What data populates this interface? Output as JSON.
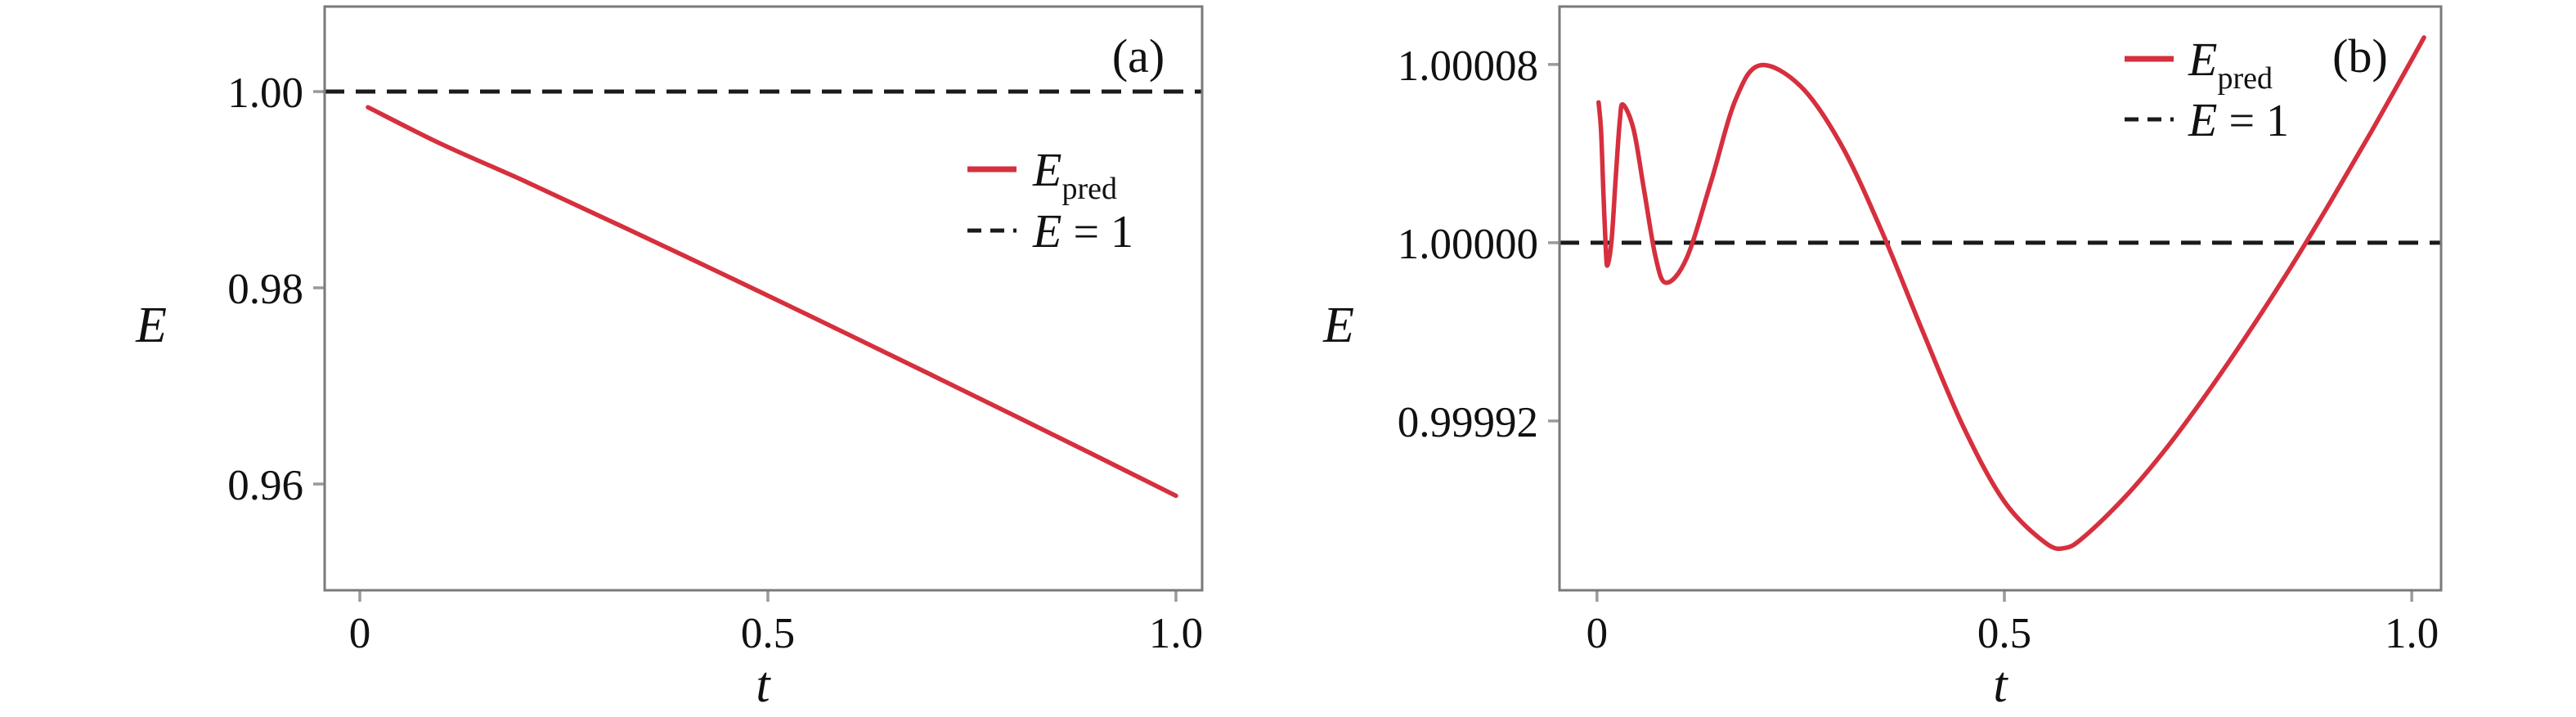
{
  "figure": {
    "background": "#ffffff",
    "spine_color": "#7a7a7a",
    "tick_color": "#9a9a9a",
    "text_color": "#111111"
  },
  "chart_data": [
    {
      "type": "line",
      "tag": "(a)",
      "xlabel": "t",
      "ylabel": "E",
      "xlim": [
        -0.0431,
        1.0321
      ],
      "ylim": [
        0.94917,
        1.00867
      ],
      "xticks": [
        {
          "v": 0,
          "label": "0"
        },
        {
          "v": 0.5,
          "label": "0.5"
        },
        {
          "v": 1.0,
          "label": "1.0"
        }
      ],
      "yticks": [
        {
          "v": 1.0,
          "label": "1.00"
        },
        {
          "v": 0.98,
          "label": "0.98"
        },
        {
          "v": 0.96,
          "label": "0.96"
        }
      ],
      "grid": false,
      "legend_position": "center right inside",
      "reference_line": {
        "value": 1.0,
        "color": "#1a1a1a",
        "style": "dashed"
      },
      "series": [
        {
          "name_main": "E",
          "name_sub": "pred",
          "name_rest": "",
          "color": "#d62f3e",
          "style": "solid",
          "points": [
            [
              0.01,
              0.9984
            ],
            [
              0.1,
              0.99465
            ],
            [
              0.2,
              0.99095
            ],
            [
              0.3,
              0.98708
            ],
            [
              0.4,
              0.98317
            ],
            [
              0.5,
              0.9792
            ],
            [
              0.6,
              0.97519
            ],
            [
              0.7,
              0.97114
            ],
            [
              0.8,
              0.96706
            ],
            [
              0.9,
              0.96295
            ],
            [
              1.0,
              0.9588
            ]
          ]
        }
      ],
      "legend": [
        {
          "swatch": "solid",
          "color": "#d62f3e",
          "main": "E",
          "sub": "pred",
          "rest": ""
        },
        {
          "swatch": "dashed",
          "color": "#1a1a1a",
          "main": "E",
          "sub": "",
          "rest": " = 1"
        }
      ]
    },
    {
      "type": "line",
      "tag": "(b)",
      "xlabel": "t",
      "ylabel": "E",
      "xlim": [
        -0.046,
        1.036
      ],
      "ylim": [
        0.999844,
        1.000106
      ],
      "xticks": [
        {
          "v": 0,
          "label": "0"
        },
        {
          "v": 0.5,
          "label": "0.5"
        },
        {
          "v": 1.0,
          "label": "1.0"
        }
      ],
      "yticks": [
        {
          "v": 1.00008,
          "label": "1.00008"
        },
        {
          "v": 1.0,
          "label": "1.00000"
        },
        {
          "v": 0.99992,
          "label": "0.99992"
        }
      ],
      "grid": false,
      "legend_position": "top right inside",
      "reference_line": {
        "value": 1.0,
        "color": "#1a1a1a",
        "style": "dashed"
      },
      "series": [
        {
          "name_main": "E",
          "name_sub": "pred",
          "name_rest": "",
          "color": "#d62f3e",
          "style": "solid",
          "points": [
            [
              0.002,
              1.000063
            ],
            [
              0.005,
              1.0000504
            ],
            [
              0.008,
              1.0000213
            ],
            [
              0.011,
              0.9999958
            ],
            [
              0.013,
              0.99999
            ],
            [
              0.018,
              1.0000016
            ],
            [
              0.023,
              1.000029
            ],
            [
              0.028,
              1.0000546
            ],
            [
              0.032,
              1.000062
            ],
            [
              0.045,
              1.0000507
            ],
            [
              0.058,
              1.0000232
            ],
            [
              0.072,
              0.9999934
            ],
            [
              0.085,
              0.999982
            ],
            [
              0.11,
              0.999993
            ],
            [
              0.14,
              1.0000274
            ],
            [
              0.17,
              1.0000641
            ],
            [
              0.2,
              1.0000796
            ],
            [
              0.25,
              1.0000702
            ],
            [
              0.3,
              1.0000438
            ],
            [
              0.35,
              1.0000048
            ],
            [
              0.4,
              0.99996
            ],
            [
              0.45,
              0.9999171
            ],
            [
              0.5,
              0.9998838
            ],
            [
              0.55,
              0.9998654
            ],
            [
              0.575,
              0.999863
            ],
            [
              0.6,
              0.9998687
            ],
            [
              0.65,
              0.9998866
            ],
            [
              0.7,
              0.9999083
            ],
            [
              0.75,
              0.9999331
            ],
            [
              0.8,
              0.9999598
            ],
            [
              0.85,
              0.9999881
            ],
            [
              0.9,
              1.0000182
            ],
            [
              0.95,
              1.0000496
            ],
            [
              1.0,
              1.0000821
            ],
            [
              1.015,
              1.0000921
            ]
          ]
        }
      ],
      "legend": [
        {
          "swatch": "solid",
          "color": "#d62f3e",
          "main": "E",
          "sub": "pred",
          "rest": ""
        },
        {
          "swatch": "dashed",
          "color": "#1a1a1a",
          "main": "E",
          "sub": "",
          "rest": " = 1"
        }
      ]
    }
  ]
}
